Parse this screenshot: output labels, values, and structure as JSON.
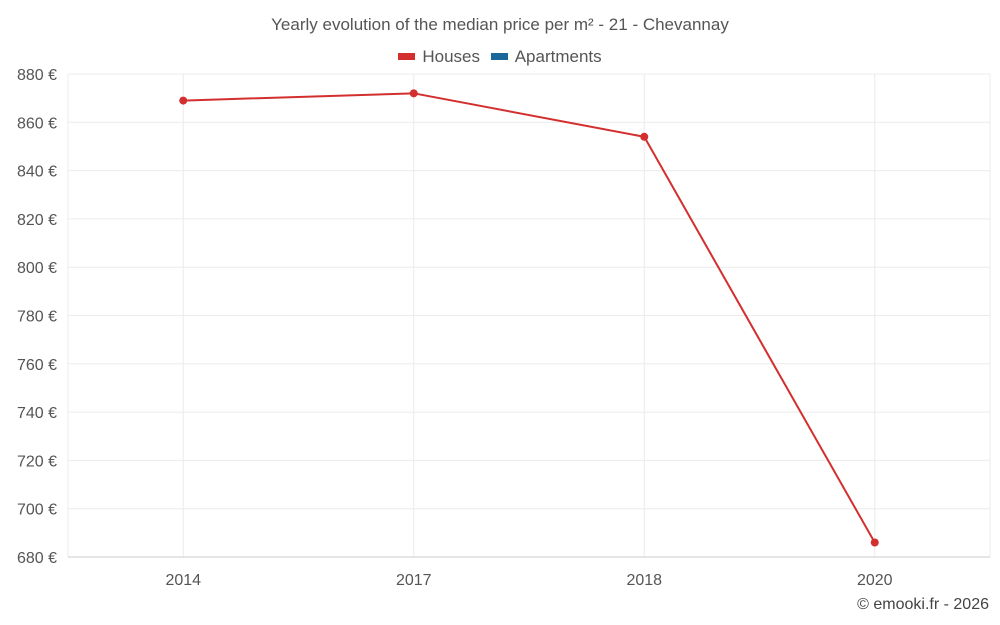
{
  "chart_data": {
    "type": "line",
    "title": "Yearly evolution of the median price per m² - 21 - Chevannay",
    "categories": [
      "2014",
      "2017",
      "2018",
      "2020"
    ],
    "series": [
      {
        "name": "Houses",
        "color": "#d32f2f",
        "values": [
          869,
          872,
          854,
          686
        ]
      },
      {
        "name": "Apartments",
        "color": "#1a6799",
        "values": [
          null,
          null,
          null,
          null
        ]
      }
    ],
    "ylim": [
      680,
      880
    ],
    "yticks": [
      680,
      700,
      720,
      740,
      760,
      780,
      800,
      820,
      840,
      860,
      880
    ],
    "y_unit": "€",
    "grid": true,
    "legend_position": "top-center"
  },
  "credit": "© emooki.fr - 2026"
}
